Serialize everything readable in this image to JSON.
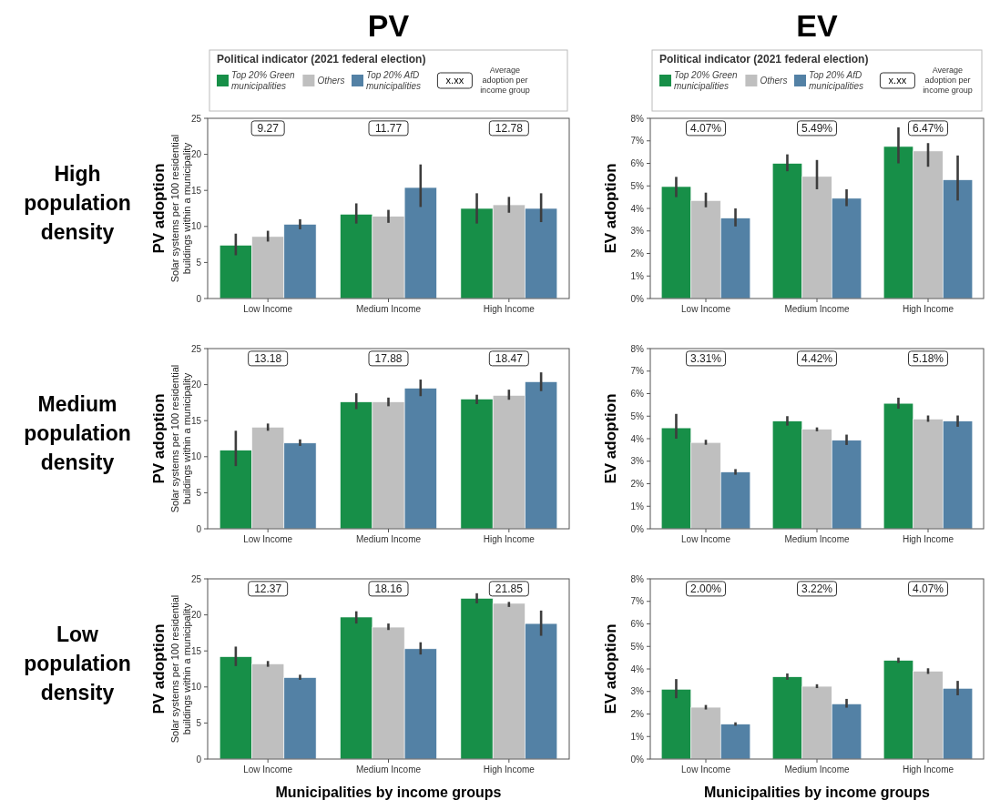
{
  "chart_data": [
    {
      "type": "bar",
      "title": "PV",
      "ylabel": "PV adoption\nSolar systems per 100 residential\nbuildings within a municipality",
      "legend_title": "Political indicator (2021 federal election)",
      "legend": "top",
      "categories": [
        "Low Income",
        "Medium Income",
        "High Income"
      ],
      "ylim": [
        0,
        25
      ],
      "yticks": [
        0,
        5,
        10,
        15,
        20,
        25
      ],
      "series": [
        {
          "name": "Top 20% Green municipalities",
          "color": "#178f48",
          "values": [
            7.4,
            11.7,
            12.5
          ],
          "errors": [
            [
              6,
              9
            ],
            [
              10.4,
              13.2
            ],
            [
              10.4,
              14.6
            ]
          ]
        },
        {
          "name": "Others",
          "color": "#bfbfbf",
          "values": [
            8.6,
            11.4,
            13.0
          ],
          "errors": [
            [
              7.9,
              9.4
            ],
            [
              10.5,
              12.3
            ],
            [
              11.9,
              14.1
            ]
          ]
        },
        {
          "name": "Top 20% AfD municipalities",
          "color": "#5381a5",
          "values": [
            10.3,
            15.4,
            12.5
          ],
          "errors": [
            [
              9.6,
              11
            ],
            [
              12.7,
              18.6
            ],
            [
              10.6,
              14.6
            ]
          ]
        }
      ],
      "annotations": [
        "High population density",
        "x.xx",
        "Average adoption per income group",
        "9.27",
        "11.77",
        "12.78"
      ]
    },
    {
      "type": "bar",
      "title": "EV",
      "ylabel": "EV adoption",
      "legend_title": "Political indicator (2021 federal election)",
      "legend": "top",
      "categories": [
        "Low Income",
        "Medium Income",
        "High Income"
      ],
      "ylim": [
        0,
        8
      ],
      "yticks": [
        {
          "value": 0,
          "label": "0%"
        },
        {
          "value": 1,
          "label": "1%"
        },
        {
          "value": 2,
          "label": "2%"
        },
        {
          "value": 3,
          "label": "3%"
        },
        {
          "value": 4,
          "label": "4%"
        },
        {
          "value": 5,
          "label": "5%"
        },
        {
          "value": 6,
          "label": "6%"
        },
        {
          "value": 7,
          "label": "7%"
        },
        {
          "value": 8,
          "label": "8%"
        }
      ],
      "series": [
        {
          "name": "Top 20% Green municipalities",
          "color": "#178f48",
          "values": [
            4.97,
            6.0,
            6.75
          ],
          "errors": [
            [
              4.5,
              5.4
            ],
            [
              5.65,
              6.4
            ],
            [
              6.0,
              7.6
            ]
          ]
        },
        {
          "name": "Others",
          "color": "#bfbfbf",
          "values": [
            4.35,
            5.42,
            6.55
          ],
          "errors": [
            [
              4.05,
              4.7
            ],
            [
              4.85,
              6.15
            ],
            [
              5.85,
              6.9
            ]
          ]
        },
        {
          "name": "Top 20% AfD municipalities",
          "color": "#5381a5",
          "values": [
            3.57,
            4.45,
            5.27
          ],
          "errors": [
            [
              3.2,
              4.0
            ],
            [
              4.1,
              4.85
            ],
            [
              4.35,
              6.35
            ]
          ]
        }
      ],
      "annotations": [
        "x.xx",
        "Average adoption per income group",
        "4.07%",
        "5.49%",
        "6.47%"
      ]
    },
    {
      "type": "bar",
      "ylabel": "PV adoption\nSolar systems per 100 residential\nbuildings within a municipality",
      "categories": [
        "Low Income",
        "Medium Income",
        "High Income"
      ],
      "ylim": [
        0,
        25
      ],
      "yticks": [
        0,
        5,
        10,
        15,
        20,
        25
      ],
      "series": [
        {
          "color": "#178f48",
          "values": [
            10.9,
            17.6,
            18.0
          ],
          "errors": [
            [
              8.7,
              13.6
            ],
            [
              16.6,
              18.8
            ],
            [
              17.3,
              18.6
            ]
          ]
        },
        {
          "color": "#bfbfbf",
          "values": [
            14.1,
            17.6,
            18.5
          ],
          "errors": [
            [
              13.6,
              14.6
            ],
            [
              17.0,
              18.2
            ],
            [
              17.9,
              19.3
            ]
          ]
        },
        {
          "color": "#5381a5",
          "values": [
            11.9,
            19.5,
            20.4
          ],
          "errors": [
            [
              11.5,
              12.4
            ],
            [
              18.4,
              20.7
            ],
            [
              19.1,
              21.7
            ]
          ]
        }
      ],
      "annotations": [
        "Medium population density",
        "13.18",
        "17.88",
        "18.47"
      ]
    },
    {
      "type": "bar",
      "ylabel": "EV adoption",
      "categories": [
        "Low Income",
        "Medium Income",
        "High Income"
      ],
      "ylim": [
        0,
        8
      ],
      "yticks": [
        {
          "value": 0,
          "label": "0%"
        },
        {
          "value": 1,
          "label": "1%"
        },
        {
          "value": 2,
          "label": "2%"
        },
        {
          "value": 3,
          "label": "3%"
        },
        {
          "value": 4,
          "label": "4%"
        },
        {
          "value": 5,
          "label": "5%"
        },
        {
          "value": 6,
          "label": "6%"
        },
        {
          "value": 7,
          "label": "7%"
        },
        {
          "value": 8,
          "label": "8%"
        }
      ],
      "series": [
        {
          "color": "#178f48",
          "values": [
            4.48,
            4.78,
            5.57
          ],
          "errors": [
            [
              4.0,
              5.1
            ],
            [
              4.58,
              5.0
            ],
            [
              5.33,
              5.82
            ]
          ]
        },
        {
          "color": "#bfbfbf",
          "values": [
            3.83,
            4.42,
            4.87
          ],
          "errors": [
            [
              3.73,
              3.95
            ],
            [
              4.33,
              4.5
            ],
            [
              4.75,
              5.03
            ]
          ]
        },
        {
          "color": "#5381a5",
          "values": [
            2.52,
            3.93,
            4.78
          ],
          "errors": [
            [
              2.4,
              2.65
            ],
            [
              3.72,
              4.18
            ],
            [
              4.53,
              5.03
            ]
          ]
        }
      ],
      "annotations": [
        "3.31%",
        "4.42%",
        "5.18%"
      ]
    },
    {
      "type": "bar",
      "ylabel": "PV adoption\nSolar systems per 100 residential\nbuildings within a municipality",
      "xlabel": "Municipalities by income groups",
      "categories": [
        "Low Income",
        "Medium Income",
        "High Income"
      ],
      "ylim": [
        0,
        25
      ],
      "yticks": [
        0,
        5,
        10,
        15,
        20,
        25
      ],
      "series": [
        {
          "color": "#178f48",
          "values": [
            14.2,
            19.7,
            22.3
          ],
          "errors": [
            [
              12.9,
              15.6
            ],
            [
              18.8,
              20.5
            ],
            [
              21.6,
              23.0
            ]
          ]
        },
        {
          "color": "#bfbfbf",
          "values": [
            13.2,
            18.3,
            21.6
          ],
          "errors": [
            [
              12.8,
              13.6
            ],
            [
              17.9,
              18.8
            ],
            [
              21.1,
              21.8
            ]
          ]
        },
        {
          "color": "#5381a5",
          "values": [
            11.3,
            15.3,
            18.8
          ],
          "errors": [
            [
              11.0,
              11.7
            ],
            [
              14.5,
              16.2
            ],
            [
              17.1,
              20.6
            ]
          ]
        }
      ],
      "annotations": [
        "Low population density",
        "12.37",
        "18.16",
        "21.85"
      ]
    },
    {
      "type": "bar",
      "ylabel": "EV adoption",
      "xlabel": "Municipalities by income groups",
      "categories": [
        "Low Income",
        "Medium Income",
        "High Income"
      ],
      "ylim": [
        0,
        8
      ],
      "yticks": [
        {
          "value": 0,
          "label": "0%"
        },
        {
          "value": 1,
          "label": "1%"
        },
        {
          "value": 2,
          "label": "2%"
        },
        {
          "value": 3,
          "label": "3%"
        },
        {
          "value": 4,
          "label": "4%"
        },
        {
          "value": 5,
          "label": "5%"
        },
        {
          "value": 6,
          "label": "6%"
        },
        {
          "value": 7,
          "label": "7%"
        },
        {
          "value": 8,
          "label": "8%"
        }
      ],
      "series": [
        {
          "color": "#178f48",
          "values": [
            3.1,
            3.65,
            4.38
          ],
          "errors": [
            [
              2.7,
              3.55
            ],
            [
              3.52,
              3.8
            ],
            [
              4.27,
              4.5
            ]
          ]
        },
        {
          "color": "#bfbfbf",
          "values": [
            2.3,
            3.23,
            3.9
          ],
          "errors": [
            [
              2.2,
              2.4
            ],
            [
              3.15,
              3.32
            ],
            [
              3.78,
              4.03
            ]
          ]
        },
        {
          "color": "#5381a5",
          "values": [
            1.55,
            2.45,
            3.14
          ],
          "errors": [
            [
              1.48,
              1.63
            ],
            [
              2.28,
              2.67
            ],
            [
              2.83,
              3.47
            ]
          ]
        }
      ],
      "annotations": [
        "2.00%",
        "3.22%",
        "4.07%"
      ]
    }
  ]
}
